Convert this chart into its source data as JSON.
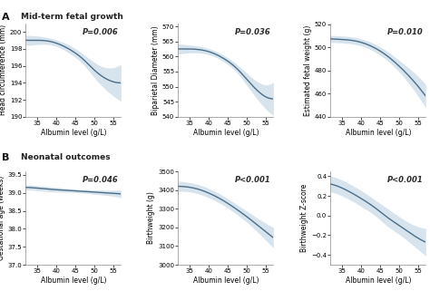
{
  "section_A_title": "Mid-term fetal growth",
  "section_B_title": "Neonatal outcomes",
  "x_label": "Albumin level (g/L)",
  "x_range": [
    32,
    57
  ],
  "x_ticks": [
    35,
    40,
    45,
    50,
    55
  ],
  "plots": [
    {
      "ylabel": "Head circumference (mm)",
      "p_value": "P=0.006",
      "ylim": [
        190,
        201
      ],
      "yticks": [
        190,
        192,
        194,
        196,
        198,
        200
      ],
      "curve": [
        [
          32,
          199.0
        ],
        [
          35,
          199.0
        ],
        [
          38,
          198.9
        ],
        [
          41,
          198.5
        ],
        [
          44,
          197.8
        ],
        [
          47,
          196.8
        ],
        [
          50,
          195.5
        ],
        [
          53,
          194.5
        ],
        [
          57,
          194.0
        ]
      ],
      "ci_upper": [
        [
          32,
          199.6
        ],
        [
          35,
          199.5
        ],
        [
          38,
          199.3
        ],
        [
          41,
          198.9
        ],
        [
          44,
          198.3
        ],
        [
          47,
          197.4
        ],
        [
          50,
          196.4
        ],
        [
          53,
          195.8
        ],
        [
          57,
          196.2
        ]
      ],
      "ci_lower": [
        [
          32,
          198.4
        ],
        [
          35,
          198.5
        ],
        [
          38,
          198.5
        ],
        [
          41,
          198.1
        ],
        [
          44,
          197.3
        ],
        [
          47,
          196.2
        ],
        [
          50,
          194.6
        ],
        [
          53,
          193.2
        ],
        [
          57,
          191.8
        ]
      ]
    },
    {
      "ylabel": "Biparietal Diameter (mm)",
      "p_value": "P=0.036",
      "ylim": [
        540,
        571
      ],
      "yticks": [
        540,
        545,
        550,
        555,
        560,
        565,
        570
      ],
      "curve": [
        [
          32,
          562.5
        ],
        [
          35,
          562.5
        ],
        [
          38,
          562.2
        ],
        [
          41,
          561.2
        ],
        [
          44,
          559.3
        ],
        [
          47,
          556.5
        ],
        [
          50,
          552.5
        ],
        [
          53,
          548.5
        ],
        [
          57,
          546.0
        ]
      ],
      "ci_upper": [
        [
          32,
          564.2
        ],
        [
          35,
          563.8
        ],
        [
          38,
          563.3
        ],
        [
          41,
          562.2
        ],
        [
          44,
          560.4
        ],
        [
          47,
          557.8
        ],
        [
          50,
          554.5
        ],
        [
          53,
          551.5
        ],
        [
          57,
          551.5
        ]
      ],
      "ci_lower": [
        [
          32,
          560.8
        ],
        [
          35,
          561.2
        ],
        [
          38,
          561.1
        ],
        [
          41,
          560.2
        ],
        [
          44,
          558.2
        ],
        [
          47,
          555.2
        ],
        [
          50,
          550.5
        ],
        [
          53,
          545.5
        ],
        [
          57,
          540.5
        ]
      ]
    },
    {
      "ylabel": "Estimated fetal weight (g)",
      "p_value": "P=0.010",
      "ylim": [
        440,
        521
      ],
      "yticks": [
        440,
        460,
        480,
        500,
        520
      ],
      "curve": [
        [
          32,
          507.5
        ],
        [
          35,
          507.0
        ],
        [
          38,
          506.0
        ],
        [
          41,
          503.5
        ],
        [
          44,
          499.0
        ],
        [
          47,
          492.5
        ],
        [
          50,
          484.0
        ],
        [
          53,
          474.0
        ],
        [
          57,
          458.0
        ]
      ],
      "ci_upper": [
        [
          32,
          510.5
        ],
        [
          35,
          510.0
        ],
        [
          38,
          509.0
        ],
        [
          41,
          506.5
        ],
        [
          44,
          502.5
        ],
        [
          47,
          496.5
        ],
        [
          50,
          489.0
        ],
        [
          53,
          481.0
        ],
        [
          57,
          468.0
        ]
      ],
      "ci_lower": [
        [
          32,
          504.5
        ],
        [
          35,
          504.0
        ],
        [
          38,
          503.0
        ],
        [
          41,
          500.5
        ],
        [
          44,
          495.5
        ],
        [
          47,
          488.5
        ],
        [
          50,
          479.0
        ],
        [
          53,
          467.0
        ],
        [
          57,
          448.0
        ]
      ]
    },
    {
      "ylabel": "Gestational age (weeks)",
      "p_value": "P=0.046",
      "ylim": [
        37.0,
        39.6
      ],
      "yticks": [
        37.0,
        37.5,
        38.0,
        38.5,
        39.0,
        39.5
      ],
      "curve": [
        [
          32,
          39.15
        ],
        [
          35,
          39.13
        ],
        [
          38,
          39.1
        ],
        [
          41,
          39.08
        ],
        [
          44,
          39.06
        ],
        [
          47,
          39.04
        ],
        [
          50,
          39.02
        ],
        [
          53,
          39.0
        ],
        [
          57,
          38.97
        ]
      ],
      "ci_upper": [
        [
          32,
          39.22
        ],
        [
          35,
          39.2
        ],
        [
          38,
          39.17
        ],
        [
          41,
          39.14
        ],
        [
          44,
          39.11
        ],
        [
          47,
          39.09
        ],
        [
          50,
          39.08
        ],
        [
          53,
          39.07
        ],
        [
          57,
          39.08
        ]
      ],
      "ci_lower": [
        [
          32,
          39.08
        ],
        [
          35,
          39.06
        ],
        [
          38,
          39.03
        ],
        [
          41,
          39.02
        ],
        [
          44,
          39.01
        ],
        [
          47,
          38.99
        ],
        [
          50,
          38.96
        ],
        [
          53,
          38.93
        ],
        [
          57,
          38.86
        ]
      ]
    },
    {
      "ylabel": "Birthweight (g)",
      "p_value": "P<0.001",
      "ylim": [
        3000,
        3501
      ],
      "yticks": [
        3000,
        3100,
        3200,
        3300,
        3400,
        3500
      ],
      "curve": [
        [
          32,
          3420.0
        ],
        [
          35,
          3415.0
        ],
        [
          38,
          3400.0
        ],
        [
          41,
          3375.0
        ],
        [
          44,
          3342.0
        ],
        [
          47,
          3302.0
        ],
        [
          50,
          3258.0
        ],
        [
          53,
          3210.0
        ],
        [
          57,
          3145.0
        ]
      ],
      "ci_upper": [
        [
          32,
          3448.0
        ],
        [
          35,
          3440.0
        ],
        [
          38,
          3425.0
        ],
        [
          41,
          3400.0
        ],
        [
          44,
          3367.0
        ],
        [
          47,
          3328.0
        ],
        [
          50,
          3288.0
        ],
        [
          53,
          3248.0
        ],
        [
          57,
          3200.0
        ]
      ],
      "ci_lower": [
        [
          32,
          3392.0
        ],
        [
          35,
          3390.0
        ],
        [
          38,
          3375.0
        ],
        [
          41,
          3350.0
        ],
        [
          44,
          3317.0
        ],
        [
          47,
          3276.0
        ],
        [
          50,
          3228.0
        ],
        [
          53,
          3172.0
        ],
        [
          57,
          3090.0
        ]
      ]
    },
    {
      "ylabel": "Birthweight Z-score",
      "p_value": "P<0.001",
      "ylim": [
        -0.5,
        0.45
      ],
      "yticks": [
        -0.4,
        -0.2,
        0.0,
        0.2,
        0.4
      ],
      "curve": [
        [
          32,
          0.32
        ],
        [
          35,
          0.28
        ],
        [
          38,
          0.22
        ],
        [
          41,
          0.15
        ],
        [
          44,
          0.07
        ],
        [
          47,
          -0.02
        ],
        [
          50,
          -0.1
        ],
        [
          53,
          -0.18
        ],
        [
          57,
          -0.27
        ]
      ],
      "ci_upper": [
        [
          32,
          0.4
        ],
        [
          35,
          0.36
        ],
        [
          38,
          0.3
        ],
        [
          41,
          0.23
        ],
        [
          44,
          0.15
        ],
        [
          47,
          0.07
        ],
        [
          50,
          -0.01
        ],
        [
          53,
          -0.08
        ],
        [
          57,
          -0.13
        ]
      ],
      "ci_lower": [
        [
          32,
          0.24
        ],
        [
          35,
          0.2
        ],
        [
          38,
          0.14
        ],
        [
          41,
          0.07
        ],
        [
          44,
          -0.01
        ],
        [
          47,
          -0.11
        ],
        [
          50,
          -0.19
        ],
        [
          53,
          -0.28
        ],
        [
          57,
          -0.41
        ]
      ]
    }
  ],
  "line_color": "#4a6e8a",
  "ci_color": "#a8c4d8",
  "ci_alpha": 0.45,
  "line_width": 1.0,
  "font_size_label": 5.5,
  "font_size_tick": 5.0,
  "font_size_pval": 6.0,
  "font_size_section": 6.5,
  "background_color": "#ffffff"
}
